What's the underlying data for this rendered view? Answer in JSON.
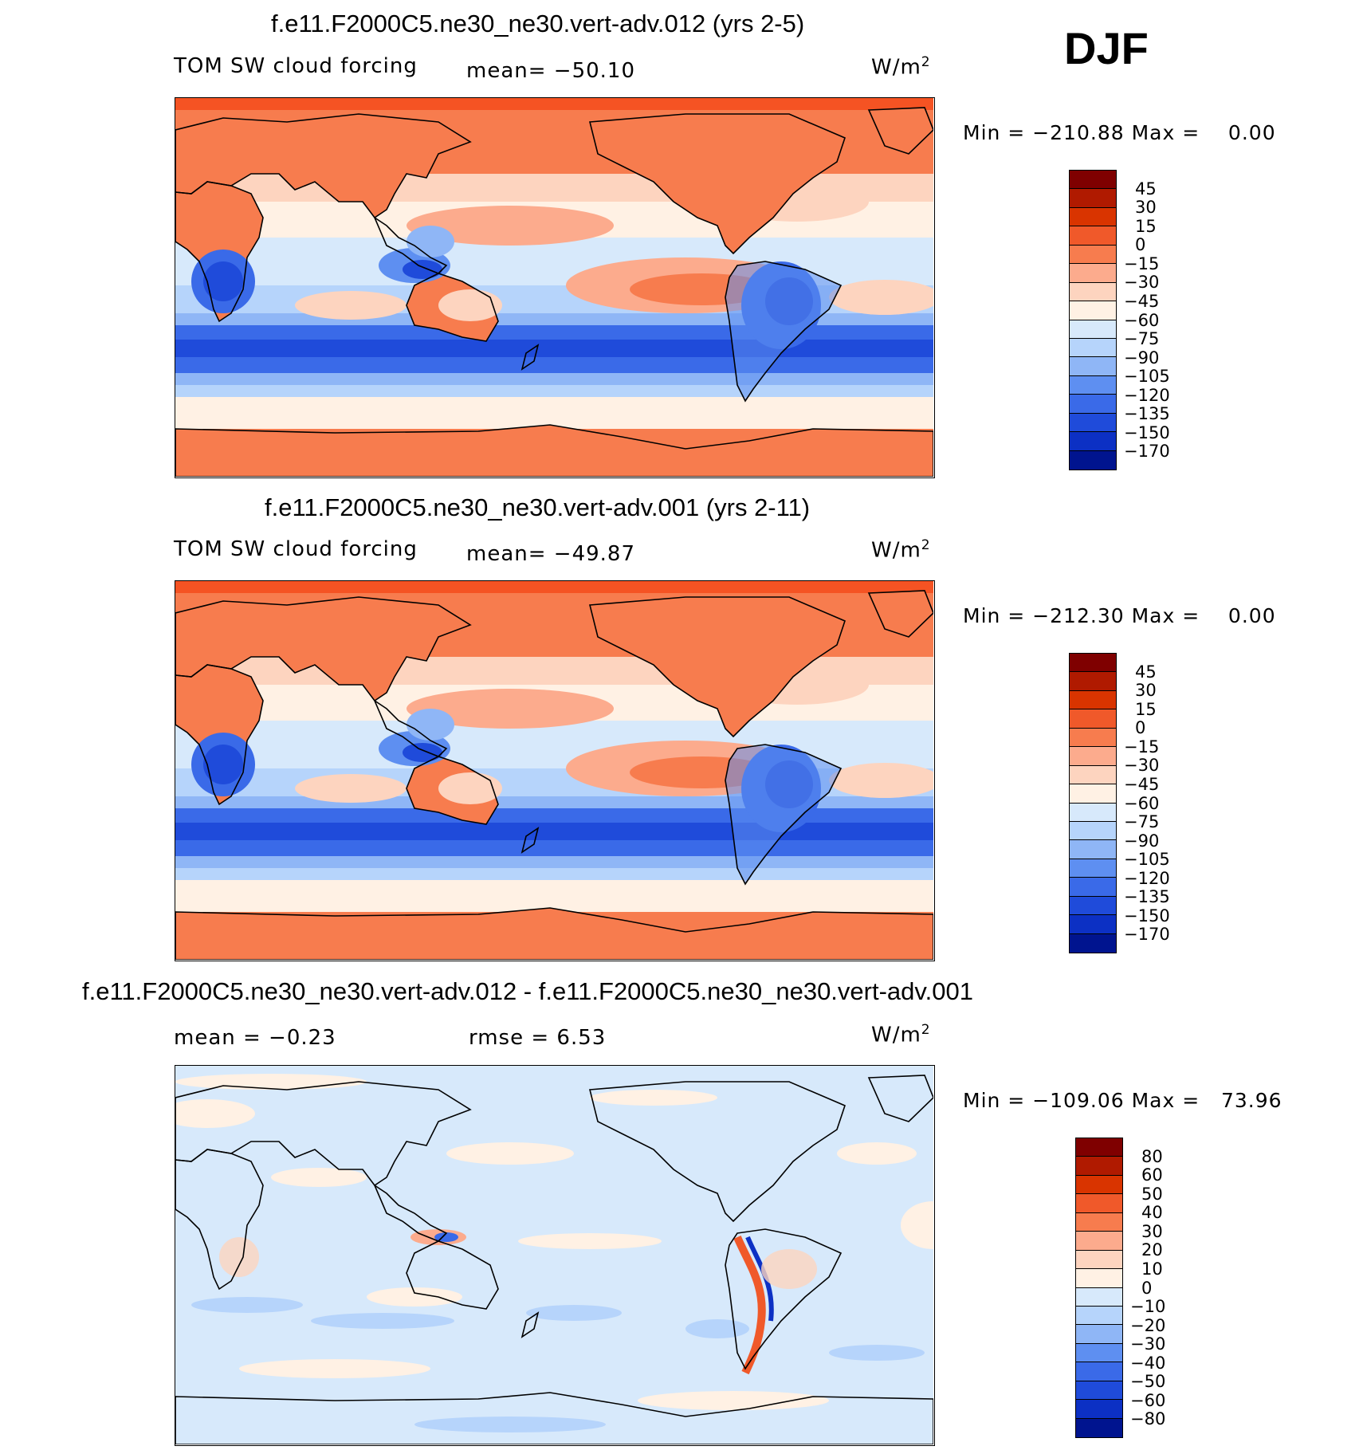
{
  "season": "DJF",
  "colors": {
    "warm": [
      "#7f0000",
      "#b01a00",
      "#d93400",
      "#f0592a",
      "#f77c4e",
      "#fcab8d",
      "#fdd4bf",
      "#fff1e4"
    ],
    "cool": [
      "#d7e9fb",
      "#b6d4fb",
      "#8fb6f6",
      "#5e8ff1",
      "#3a6ae8",
      "#1f4bda",
      "#0c30c4",
      "#00148f"
    ],
    "polar_top": "#f55323",
    "land": "#f77c4e",
    "coast": "#000000"
  },
  "panels": [
    {
      "title": "f.e11.F2000C5.ne30_ne30.vert-adv.012 (yrs 2-5)",
      "variable": "TOM SW cloud forcing",
      "stat": "mean= −50.10",
      "units": "W/m",
      "units_exp": "2",
      "minmax": "Min = −210.88 Max =    0.00",
      "colorbar_labels": [
        "45",
        "30",
        "15",
        "0",
        "−15",
        "−30",
        "−45",
        "−60",
        "−75",
        "−90",
        "−105",
        "−120",
        "−135",
        "−150",
        "−170"
      ],
      "colorbar_colors": [
        "#7f0000",
        "#b01a00",
        "#d93400",
        "#f0592a",
        "#f77c4e",
        "#fcab8d",
        "#fdd4bf",
        "#fff1e4",
        "#d7e9fb",
        "#b6d4fb",
        "#8fb6f6",
        "#5e8ff1",
        "#3a6ae8",
        "#1f4bda",
        "#0c30c4",
        "#00148f"
      ]
    },
    {
      "title": "f.e11.F2000C5.ne30_ne30.vert-adv.001 (yrs 2-11)",
      "variable": "TOM SW cloud forcing",
      "stat": "mean= −49.87",
      "units": "W/m",
      "units_exp": "2",
      "minmax": "Min = −212.30 Max =    0.00",
      "colorbar_labels": [
        "45",
        "30",
        "15",
        "0",
        "−15",
        "−30",
        "−45",
        "−60",
        "−75",
        "−90",
        "−105",
        "−120",
        "−135",
        "−150",
        "−170"
      ],
      "colorbar_colors": [
        "#7f0000",
        "#b01a00",
        "#d93400",
        "#f0592a",
        "#f77c4e",
        "#fcab8d",
        "#fdd4bf",
        "#fff1e4",
        "#d7e9fb",
        "#b6d4fb",
        "#8fb6f6",
        "#5e8ff1",
        "#3a6ae8",
        "#1f4bda",
        "#0c30c4",
        "#00148f"
      ]
    },
    {
      "title": "f.e11.F2000C5.ne30_ne30.vert-adv.012 - f.e11.F2000C5.ne30_ne30.vert-adv.001",
      "variable": "mean =   −0.23",
      "stat": "rmse =     6.53",
      "units": "W/m",
      "units_exp": "2",
      "minmax": "Min = −109.06 Max =   73.96",
      "colorbar_labels": [
        "80",
        "60",
        "50",
        "40",
        "30",
        "20",
        "10",
        "0",
        "−10",
        "−20",
        "−30",
        "−40",
        "−50",
        "−60",
        "−80"
      ],
      "colorbar_colors": [
        "#7f0000",
        "#b01a00",
        "#d93400",
        "#f0592a",
        "#f77c4e",
        "#fcab8d",
        "#fdd4bf",
        "#fff1e4",
        "#d7e9fb",
        "#b6d4fb",
        "#8fb6f6",
        "#5e8ff1",
        "#3a6ae8",
        "#1f4bda",
        "#0c30c4",
        "#00148f"
      ]
    }
  ]
}
